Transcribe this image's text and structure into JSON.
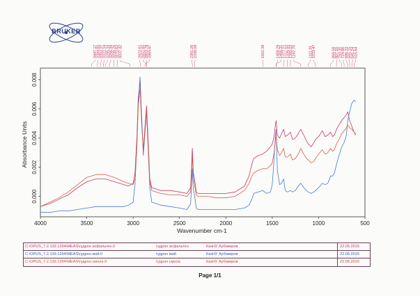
{
  "chart_data": {
    "type": "line",
    "title": "",
    "xlabel": "Wavenumber cm-1",
    "ylabel": "Absorbance Units",
    "xlim": [
      4000,
      500
    ],
    "ylim": [
      -0.0014,
      0.0088
    ],
    "x_ticks": [
      4000,
      3500,
      3000,
      2500,
      2000,
      1500,
      1000,
      500
    ],
    "y_ticks": [
      0.0,
      0.002,
      0.004,
      0.006,
      0.008
    ],
    "y_tick_labels": [
      "0.000",
      "0.002",
      "0.004",
      "0.006",
      "0.008"
    ],
    "peak_labels": {
      "group1": [
        "3447.17",
        "3384.85",
        "3352.37",
        "3322.14",
        "3295.16",
        "3256.34",
        "3206.26",
        "3172.62",
        "3037.42"
      ],
      "group2": [
        "2923.81",
        "2852.85",
        "2853.78",
        "2869.87"
      ],
      "group3": [
        "2361.26",
        "2338.08"
      ],
      "group4": [
        "1602.38"
      ],
      "group5": [
        "1458.29",
        "1456.31",
        "1377.21",
        "1336.50",
        "1305.03",
        "1192.78"
      ],
      "group6": [
        "1111.35",
        "1033.47"
      ],
      "group7": [
        "869.58",
        "807.55",
        "750.30",
        "724.86",
        "686.33",
        "665.15",
        "641.24",
        "616.64"
      ]
    },
    "series": [
      {
        "name": "гудрон асфальтен",
        "color": "#c8336a",
        "x": [
          4000,
          3900,
          3800,
          3700,
          3600,
          3500,
          3400,
          3300,
          3200,
          3100,
          3050,
          3000,
          2980,
          2960,
          2945,
          2925,
          2910,
          2890,
          2872,
          2855,
          2840,
          2820,
          2800,
          2700,
          2600,
          2500,
          2420,
          2380,
          2362,
          2350,
          2338,
          2320,
          2300,
          2200,
          2100,
          2000,
          1900,
          1800,
          1750,
          1720,
          1700,
          1650,
          1602,
          1560,
          1520,
          1500,
          1480,
          1470,
          1458,
          1445,
          1420,
          1400,
          1377,
          1360,
          1336,
          1305,
          1280,
          1250,
          1220,
          1192,
          1160,
          1130,
          1111,
          1080,
          1050,
          1033,
          1000,
          960,
          930,
          900,
          870,
          850,
          830,
          807,
          780,
          750,
          725,
          700,
          686,
          665,
          641,
          617,
          600
        ],
        "values": [
          -0.0007,
          -0.0005,
          -0.0002,
          0.0001,
          0.0006,
          0.001,
          0.0012,
          0.0012,
          0.001,
          0.0008,
          0.0007,
          0.0009,
          0.0016,
          0.004,
          0.0068,
          0.0078,
          0.0055,
          0.0032,
          0.0048,
          0.0062,
          0.0042,
          0.0012,
          0.0006,
          0.0004,
          0.0004,
          0.0003,
          0.0002,
          0.0006,
          0.0033,
          0.0016,
          0.0012,
          0.0003,
          0.0002,
          0.0002,
          0.0002,
          0.0002,
          0.0003,
          0.0007,
          0.0014,
          0.0022,
          0.0026,
          0.0028,
          0.0029,
          0.0031,
          0.0034,
          0.0036,
          0.0041,
          0.0047,
          0.0052,
          0.0042,
          0.004,
          0.0043,
          0.0046,
          0.0041,
          0.0042,
          0.0044,
          0.0039,
          0.004,
          0.0043,
          0.0046,
          0.0042,
          0.0038,
          0.0036,
          0.0034,
          0.0037,
          0.0039,
          0.0041,
          0.0045,
          0.0041,
          0.0042,
          0.0044,
          0.0041,
          0.0042,
          0.0046,
          0.0049,
          0.0052,
          0.0054,
          0.0056,
          0.0058,
          0.0052,
          0.0048,
          0.0044,
          0.0042
        ]
      },
      {
        "name": "гудрон май",
        "color": "#4a78c8",
        "x": [
          4000,
          3900,
          3800,
          3700,
          3600,
          3500,
          3400,
          3300,
          3200,
          3100,
          3050,
          3000,
          2980,
          2960,
          2945,
          2925,
          2910,
          2890,
          2872,
          2855,
          2840,
          2820,
          2800,
          2700,
          2600,
          2500,
          2420,
          2380,
          2362,
          2350,
          2338,
          2320,
          2300,
          2200,
          2100,
          2000,
          1900,
          1800,
          1750,
          1720,
          1700,
          1650,
          1602,
          1560,
          1520,
          1500,
          1480,
          1470,
          1458,
          1445,
          1420,
          1400,
          1377,
          1360,
          1336,
          1305,
          1280,
          1250,
          1220,
          1192,
          1160,
          1130,
          1111,
          1080,
          1050,
          1033,
          1000,
          960,
          930,
          900,
          870,
          850,
          830,
          807,
          780,
          750,
          725,
          700,
          686,
          665,
          641,
          617,
          600
        ],
        "values": [
          -0.0011,
          -0.0011,
          -0.001,
          -0.001,
          -0.0009,
          -0.0008,
          -0.0007,
          -0.0007,
          -0.0007,
          -0.0007,
          -0.0006,
          -0.0004,
          0.0008,
          0.0035,
          0.0064,
          0.0082,
          0.0058,
          0.0028,
          0.0044,
          0.0058,
          0.0036,
          0.0006,
          -0.0004,
          -0.0006,
          -0.0007,
          -0.0008,
          -0.0009,
          -0.0005,
          0.0019,
          0.0004,
          0.0001,
          -0.0008,
          -0.0009,
          -0.0009,
          -0.0009,
          -0.0009,
          -0.0009,
          -0.0008,
          -0.0006,
          -0.0002,
          0.0002,
          0.0003,
          0.0004,
          0.0002,
          0.0003,
          0.0008,
          0.0026,
          0.0038,
          0.0046,
          0.0018,
          0.0008,
          0.0009,
          0.0012,
          0.0004,
          0.0003,
          0.0004,
          0.0003,
          0.0004,
          0.0007,
          0.0009,
          0.0006,
          0.0004,
          0.0003,
          0.0002,
          0.0003,
          0.0004,
          0.0006,
          0.0009,
          0.0008,
          0.0009,
          0.0014,
          0.0014,
          0.0016,
          0.0022,
          0.0028,
          0.0034,
          0.0037,
          0.0042,
          0.0052,
          0.0058,
          0.0064,
          0.0066,
          0.0065
        ]
      },
      {
        "name": "гудрон смола",
        "color": "#d0604a",
        "x": [
          4000,
          3900,
          3800,
          3700,
          3600,
          3500,
          3400,
          3300,
          3200,
          3100,
          3050,
          3000,
          2980,
          2960,
          2945,
          2925,
          2910,
          2890,
          2872,
          2855,
          2840,
          2820,
          2800,
          2700,
          2600,
          2500,
          2420,
          2380,
          2362,
          2350,
          2338,
          2320,
          2300,
          2200,
          2100,
          2000,
          1900,
          1800,
          1750,
          1720,
          1700,
          1650,
          1602,
          1560,
          1520,
          1500,
          1480,
          1470,
          1458,
          1445,
          1420,
          1400,
          1377,
          1360,
          1336,
          1305,
          1280,
          1250,
          1220,
          1192,
          1160,
          1130,
          1111,
          1080,
          1050,
          1033,
          1000,
          960,
          930,
          900,
          870,
          850,
          830,
          807,
          780,
          750,
          725,
          700,
          686,
          665,
          641,
          617,
          600
        ],
        "values": [
          -0.0007,
          -0.0004,
          -0.0001,
          0.0003,
          0.0008,
          0.0013,
          0.0015,
          0.0015,
          0.0013,
          0.001,
          0.0009,
          0.0008,
          0.0012,
          0.0034,
          0.0062,
          0.0074,
          0.0052,
          0.003,
          0.0045,
          0.0058,
          0.0038,
          0.001,
          0.0004,
          0.0002,
          0.0001,
          0.0001,
          0.0,
          0.0003,
          0.0028,
          0.0012,
          0.0008,
          0.0001,
          0.0,
          0.0,
          -0.0001,
          -0.0001,
          0.0,
          0.0004,
          0.0009,
          0.0014,
          0.0016,
          0.0018,
          0.0019,
          0.0019,
          0.0021,
          0.0023,
          0.003,
          0.0036,
          0.0042,
          0.0032,
          0.0028,
          0.003,
          0.0033,
          0.0027,
          0.0027,
          0.0029,
          0.0025,
          0.0026,
          0.0029,
          0.0033,
          0.0029,
          0.0026,
          0.0025,
          0.0023,
          0.0024,
          0.0026,
          0.0029,
          0.0032,
          0.0029,
          0.003,
          0.0033,
          0.0031,
          0.0032,
          0.0036,
          0.0039,
          0.0043,
          0.0045,
          0.0047,
          0.0049,
          0.0047,
          0.0046,
          0.0044,
          0.0043
        ]
      }
    ]
  },
  "logo": {
    "text": "BRUKER"
  },
  "legend": [
    {
      "path": "C:\\OPUS_7.2.139.1294\\MEAS\\гудрон асфальтен.0",
      "name": "гудрон асфальтен",
      "org": "КазНУ Аубакиров",
      "date": "22.05.2015",
      "color": "#c8336a"
    },
    {
      "path": "C:\\OPUS_7.2.139.1294\\MEAS\\гудрон май.0",
      "name": "гудрон май",
      "org": "КазНУ Аубакиров",
      "date": "22.05.2015",
      "color": "#3a62b8"
    },
    {
      "path": "C:\\OPUS_7.2.139.1294\\MEAS\\гудрон смола.0",
      "name": "гудрон смола",
      "org": "КазНУ Аубакиров",
      "date": "22.05.2015",
      "color": "#c84a3a"
    }
  ],
  "footer": {
    "page": "Page 1/1"
  }
}
